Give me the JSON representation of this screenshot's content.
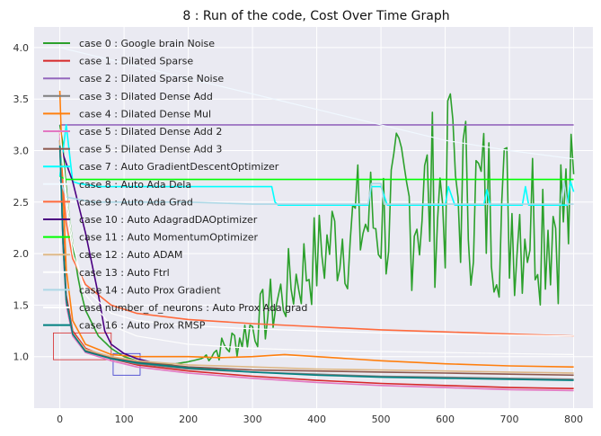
{
  "chart_data": {
    "type": "line",
    "title": "8 : Run of the code, Cost Over Time Graph",
    "xlabel": "",
    "ylabel": "",
    "xlim": [
      -40,
      830
    ],
    "ylim": [
      0.5,
      4.2
    ],
    "xticks": [
      0,
      100,
      200,
      300,
      400,
      500,
      600,
      700,
      800
    ],
    "yticks": [
      1.0,
      1.5,
      2.0,
      2.5,
      3.0,
      3.5,
      4.0
    ],
    "xtick_labels": [
      "0",
      "100",
      "200",
      "300",
      "400",
      "500",
      "600",
      "700",
      "800"
    ],
    "ytick_labels": [
      "1.0",
      "1.5",
      "2.0",
      "2.5",
      "3.0",
      "3.5",
      "4.0"
    ],
    "grid": true,
    "legend_position": "top-left",
    "zoom_boxes": [
      {
        "color": "#d62728",
        "x": [
          -10,
          80
        ],
        "y": [
          0.97,
          1.23
        ]
      },
      {
        "color": "#3333cc",
        "x": [
          83,
          125
        ],
        "y": [
          0.82,
          1.03
        ]
      }
    ],
    "series": [
      {
        "name": "case 0 : Google brain Noise",
        "color": "#2ca02c",
        "kind": "noise_green",
        "points": [
          [
            0,
            3.25
          ],
          [
            5,
            3.05
          ],
          [
            10,
            2.6
          ],
          [
            20,
            2.1
          ],
          [
            30,
            1.7
          ],
          [
            40,
            1.45
          ],
          [
            60,
            1.2
          ],
          [
            80,
            1.08
          ],
          [
            100,
            1.0
          ],
          [
            120,
            0.96
          ],
          [
            140,
            0.94
          ],
          [
            160,
            0.93
          ],
          [
            180,
            0.93
          ],
          [
            200,
            0.95
          ],
          [
            220,
            0.98
          ],
          [
            240,
            1.05
          ],
          [
            260,
            1.1
          ],
          [
            280,
            1.18
          ],
          [
            300,
            1.3
          ],
          [
            320,
            1.4
          ],
          [
            340,
            1.55
          ],
          [
            360,
            1.7
          ],
          [
            380,
            1.85
          ],
          [
            400,
            1.95
          ],
          [
            420,
            2.1
          ],
          [
            440,
            2.2
          ],
          [
            460,
            2.25
          ],
          [
            480,
            2.3
          ],
          [
            500,
            2.35
          ],
          [
            520,
            2.4
          ],
          [
            540,
            2.45
          ],
          [
            560,
            2.5
          ],
          [
            580,
            2.55
          ],
          [
            600,
            2.6
          ],
          [
            620,
            2.6
          ],
          [
            640,
            2.55
          ],
          [
            660,
            2.5
          ],
          [
            680,
            2.45
          ],
          [
            700,
            2.4
          ],
          [
            720,
            2.4
          ],
          [
            740,
            2.4
          ],
          [
            760,
            2.4
          ],
          [
            780,
            2.4
          ],
          [
            800,
            2.38
          ]
        ]
      },
      {
        "name": "case 1 : Dilated Sparse",
        "color": "#d62728",
        "points": [
          [
            0,
            3.2
          ],
          [
            5,
            2.2
          ],
          [
            10,
            1.6
          ],
          [
            20,
            1.25
          ],
          [
            40,
            1.08
          ],
          [
            80,
            0.98
          ],
          [
            120,
            0.92
          ],
          [
            200,
            0.86
          ],
          [
            300,
            0.81
          ],
          [
            400,
            0.77
          ],
          [
            500,
            0.74
          ],
          [
            600,
            0.72
          ],
          [
            700,
            0.7
          ],
          [
            800,
            0.69
          ]
        ]
      },
      {
        "name": "case 2 : Dilated Sparse Noise",
        "color": "#9467bd",
        "points": [
          [
            0,
            3.25
          ],
          [
            100,
            3.25
          ],
          [
            200,
            3.25
          ],
          [
            300,
            3.25
          ],
          [
            400,
            3.25
          ],
          [
            500,
            3.25
          ],
          [
            600,
            3.25
          ],
          [
            700,
            3.25
          ],
          [
            800,
            3.25
          ]
        ]
      },
      {
        "name": "case 3 : Dilated Dense Add",
        "color": "#7f7f7f",
        "points": [
          [
            0,
            3.1
          ],
          [
            5,
            2.1
          ],
          [
            10,
            1.55
          ],
          [
            20,
            1.22
          ],
          [
            40,
            1.06
          ],
          [
            80,
            0.98
          ],
          [
            120,
            0.93
          ],
          [
            200,
            0.88
          ],
          [
            300,
            0.85
          ],
          [
            400,
            0.83
          ],
          [
            500,
            0.81
          ],
          [
            600,
            0.8
          ],
          [
            700,
            0.79
          ],
          [
            800,
            0.78
          ]
        ]
      },
      {
        "name": "case 4 : Dilated Dense Mul",
        "color": "#ff7f0e",
        "points": [
          [
            0,
            3.58
          ],
          [
            5,
            2.6
          ],
          [
            10,
            1.85
          ],
          [
            20,
            1.35
          ],
          [
            40,
            1.12
          ],
          [
            80,
            1.02
          ],
          [
            120,
            1.0
          ],
          [
            200,
            1.0
          ],
          [
            250,
            0.99
          ],
          [
            300,
            1.0
          ],
          [
            350,
            1.02
          ],
          [
            400,
            1.0
          ],
          [
            450,
            0.98
          ],
          [
            500,
            0.96
          ],
          [
            600,
            0.93
          ],
          [
            700,
            0.91
          ],
          [
            800,
            0.9
          ]
        ]
      },
      {
        "name": "case 5 : Dilated Dense Add 2",
        "color": "#e377c2",
        "points": [
          [
            0,
            3.15
          ],
          [
            5,
            2.05
          ],
          [
            10,
            1.5
          ],
          [
            20,
            1.2
          ],
          [
            40,
            1.04
          ],
          [
            80,
            0.96
          ],
          [
            120,
            0.9
          ],
          [
            200,
            0.84
          ],
          [
            300,
            0.79
          ],
          [
            400,
            0.75
          ],
          [
            500,
            0.72
          ],
          [
            600,
            0.7
          ],
          [
            700,
            0.68
          ],
          [
            800,
            0.67
          ]
        ]
      },
      {
        "name": "case 5 : Dilated Dense Add 3",
        "color": "#8c564b",
        "points": [
          [
            0,
            3.1
          ],
          [
            5,
            2.1
          ],
          [
            10,
            1.55
          ],
          [
            20,
            1.22
          ],
          [
            40,
            1.06
          ],
          [
            80,
            0.99
          ],
          [
            120,
            0.95
          ],
          [
            200,
            0.9
          ],
          [
            300,
            0.87
          ],
          [
            400,
            0.86
          ],
          [
            500,
            0.85
          ],
          [
            600,
            0.84
          ],
          [
            700,
            0.83
          ],
          [
            800,
            0.82
          ]
        ]
      },
      {
        "name": "case 7 : Auto GradientDescentOptimizer",
        "color": "#00ffff",
        "points": [
          [
            0,
            2.75
          ],
          [
            10,
            3.25
          ],
          [
            20,
            2.7
          ],
          [
            30,
            2.68
          ],
          [
            60,
            2.65
          ],
          [
            100,
            2.65
          ],
          [
            200,
            2.65
          ],
          [
            300,
            2.65
          ],
          [
            330,
            2.65
          ],
          [
            335,
            2.5
          ],
          [
            340,
            2.47
          ],
          [
            400,
            2.47
          ],
          [
            480,
            2.47
          ],
          [
            485,
            2.65
          ],
          [
            500,
            2.65
          ],
          [
            510,
            2.47
          ],
          [
            600,
            2.47
          ],
          [
            605,
            2.65
          ],
          [
            615,
            2.47
          ],
          [
            660,
            2.47
          ],
          [
            665,
            2.62
          ],
          [
            670,
            2.47
          ],
          [
            720,
            2.47
          ],
          [
            725,
            2.65
          ],
          [
            730,
            2.47
          ],
          [
            790,
            2.47
          ],
          [
            795,
            2.7
          ],
          [
            800,
            2.6
          ]
        ]
      },
      {
        "name": "case 8 : Auto Ada Dela",
        "color": "#f0f8ff",
        "points": [
          [
            0,
            4.0
          ],
          [
            100,
            3.85
          ],
          [
            200,
            3.7
          ],
          [
            300,
            3.55
          ],
          [
            400,
            3.4
          ],
          [
            500,
            3.25
          ],
          [
            600,
            3.1
          ],
          [
            700,
            3.0
          ],
          [
            800,
            2.92
          ]
        ]
      },
      {
        "name": "case 9 : Auto Ada Grad",
        "color": "#ff6a3c",
        "points": [
          [
            0,
            3.0
          ],
          [
            10,
            2.3
          ],
          [
            20,
            1.95
          ],
          [
            40,
            1.7
          ],
          [
            80,
            1.5
          ],
          [
            120,
            1.42
          ],
          [
            200,
            1.36
          ],
          [
            300,
            1.32
          ],
          [
            400,
            1.29
          ],
          [
            500,
            1.26
          ],
          [
            600,
            1.24
          ],
          [
            700,
            1.22
          ],
          [
            800,
            1.2
          ]
        ]
      },
      {
        "name": "case 10 : Auto AdagradDAOptimizer",
        "color": "#4b0082",
        "points": [
          [
            0,
            3.05
          ],
          [
            20,
            2.7
          ],
          [
            40,
            2.2
          ],
          [
            60,
            1.6
          ],
          [
            70,
            1.25
          ],
          [
            80,
            1.12
          ],
          [
            100,
            1.03
          ],
          [
            120,
            0.98
          ],
          [
            140,
            0.95
          ]
        ]
      },
      {
        "name": "case 11 : Auto MomentumOptimizer",
        "color": "#00ff00",
        "points": [
          [
            0,
            2.75
          ],
          [
            10,
            2.72
          ],
          [
            50,
            2.72
          ],
          [
            100,
            2.72
          ],
          [
            200,
            2.72
          ],
          [
            300,
            2.72
          ],
          [
            400,
            2.72
          ],
          [
            500,
            2.72
          ],
          [
            600,
            2.72
          ],
          [
            700,
            2.72
          ],
          [
            800,
            2.72
          ]
        ]
      },
      {
        "name": "case 12 : Auto ADAM",
        "color": "#deb887",
        "points": [
          [
            0,
            3.1
          ],
          [
            5,
            2.1
          ],
          [
            10,
            1.55
          ],
          [
            20,
            1.23
          ],
          [
            40,
            1.07
          ],
          [
            80,
            1.0
          ],
          [
            120,
            0.96
          ],
          [
            200,
            0.92
          ],
          [
            300,
            0.9
          ],
          [
            400,
            0.88
          ],
          [
            500,
            0.87
          ],
          [
            600,
            0.86
          ],
          [
            700,
            0.85
          ],
          [
            800,
            0.84
          ]
        ]
      },
      {
        "name": "case 13 : Auto Ftrl",
        "color": "#fdfdfd",
        "points": [
          [
            0,
            3.2
          ],
          [
            10,
            2.6
          ],
          [
            20,
            2.1
          ],
          [
            40,
            1.6
          ],
          [
            80,
            1.3
          ],
          [
            120,
            1.2
          ],
          [
            200,
            1.12
          ],
          [
            300,
            1.08
          ],
          [
            400,
            1.06
          ],
          [
            500,
            1.05
          ],
          [
            600,
            1.04
          ],
          [
            700,
            1.03
          ],
          [
            800,
            1.02
          ]
        ]
      },
      {
        "name": "case 14 : Auto Prox Gradient",
        "color": "#add8e6",
        "points": [
          [
            0,
            2.72
          ],
          [
            10,
            2.55
          ],
          [
            50,
            2.5
          ],
          [
            100,
            2.5
          ],
          [
            200,
            2.5
          ],
          [
            300,
            2.48
          ],
          [
            400,
            2.48
          ],
          [
            480,
            2.48
          ],
          [
            485,
            2.68
          ],
          [
            500,
            2.68
          ],
          [
            505,
            2.48
          ],
          [
            600,
            2.48
          ],
          [
            700,
            2.48
          ],
          [
            780,
            2.48
          ],
          [
            785,
            2.7
          ],
          [
            790,
            2.48
          ],
          [
            800,
            2.48
          ]
        ]
      },
      {
        "name": "case number_of_neurons : Auto Prox Ada grad",
        "color": "#ffffff",
        "points": [
          [
            0,
            3.2
          ],
          [
            10,
            2.5
          ],
          [
            20,
            2.0
          ],
          [
            40,
            1.65
          ],
          [
            80,
            1.42
          ],
          [
            120,
            1.35
          ],
          [
            200,
            1.3
          ],
          [
            300,
            1.27
          ],
          [
            400,
            1.25
          ],
          [
            500,
            1.23
          ],
          [
            600,
            1.22
          ],
          [
            700,
            1.21
          ],
          [
            800,
            1.2
          ]
        ]
      },
      {
        "name": "case 16 : Auto Prox RMSP",
        "color": "#008080",
        "points": [
          [
            0,
            3.05
          ],
          [
            5,
            2.1
          ],
          [
            10,
            1.55
          ],
          [
            20,
            1.22
          ],
          [
            40,
            1.05
          ],
          [
            80,
            0.98
          ],
          [
            120,
            0.94
          ],
          [
            200,
            0.89
          ],
          [
            300,
            0.85
          ],
          [
            400,
            0.82
          ],
          [
            500,
            0.8
          ],
          [
            600,
            0.79
          ],
          [
            700,
            0.78
          ],
          [
            800,
            0.77
          ]
        ]
      }
    ]
  }
}
